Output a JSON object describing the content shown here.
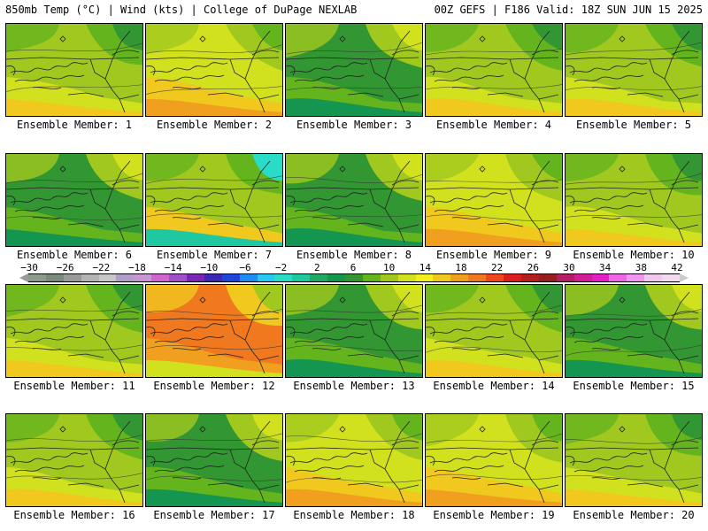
{
  "header": {
    "left": "850mb Temp (°C) | Wind (kts) | College of DuPage NEXLAB",
    "right": "00Z GEFS | F186 Valid: 18Z SUN JUN 15 2025"
  },
  "panel_label_prefix": "Ensemble Member: ",
  "members": [
    {
      "label": "Ensemble Member: 1",
      "scheme": "mixed"
    },
    {
      "label": "Ensemble Member: 2",
      "scheme": "warm"
    },
    {
      "label": "Ensemble Member: 3",
      "scheme": "cool"
    },
    {
      "label": "Ensemble Member: 4",
      "scheme": "mixed"
    },
    {
      "label": "Ensemble Member: 5",
      "scheme": "mixed"
    },
    {
      "label": "Ensemble Member: 6",
      "scheme": "cool"
    },
    {
      "label": "Ensemble Member: 7",
      "scheme": "cold-ne"
    },
    {
      "label": "Ensemble Member: 8",
      "scheme": "cool"
    },
    {
      "label": "Ensemble Member: 9",
      "scheme": "warm"
    },
    {
      "label": "Ensemble Member: 10",
      "scheme": "mixed"
    },
    {
      "label": "Ensemble Member: 11",
      "scheme": "mixed"
    },
    {
      "label": "Ensemble Member: 12",
      "scheme": "hot"
    },
    {
      "label": "Ensemble Member: 13",
      "scheme": "cool"
    },
    {
      "label": "Ensemble Member: 14",
      "scheme": "mixed"
    },
    {
      "label": "Ensemble Member: 15",
      "scheme": "cool"
    },
    {
      "label": "Ensemble Member: 16",
      "scheme": "mixed"
    },
    {
      "label": "Ensemble Member: 17",
      "scheme": "cool"
    },
    {
      "label": "Ensemble Member: 18",
      "scheme": "warm"
    },
    {
      "label": "Ensemble Member: 19",
      "scheme": "warm"
    },
    {
      "label": "Ensemble Member: 20",
      "scheme": "mixed"
    }
  ],
  "colorbar": {
    "ticks": [
      "-30",
      "-26",
      "-22",
      "-18",
      "-14",
      "-10",
      "-6",
      "-2",
      "2",
      "6",
      "10",
      "14",
      "18",
      "22",
      "26",
      "30",
      "34",
      "38",
      "42"
    ],
    "colors": [
      "#8c9c8c",
      "#7a8a7a",
      "#9a9a9a",
      "#b4b4b4",
      "#c8c8c8",
      "#b0a0c8",
      "#c896d2",
      "#d264d2",
      "#a050c8",
      "#7828b4",
      "#3c28b4",
      "#1e46dc",
      "#1e8cf0",
      "#28c8f0",
      "#28dcc8",
      "#1ec8a0",
      "#1eaa64",
      "#149650",
      "#329632",
      "#64b41e",
      "#a0c81e",
      "#d2e11e",
      "#f0f01e",
      "#f0c81e",
      "#f0a01e",
      "#f0781e",
      "#f0461e",
      "#dc1e1e",
      "#b41e1e",
      "#961e1e",
      "#b41e64",
      "#d21e96",
      "#e61ec8",
      "#f064e6",
      "#f096f0",
      "#f0c8f0",
      "#f0dcf0"
    ]
  }
}
